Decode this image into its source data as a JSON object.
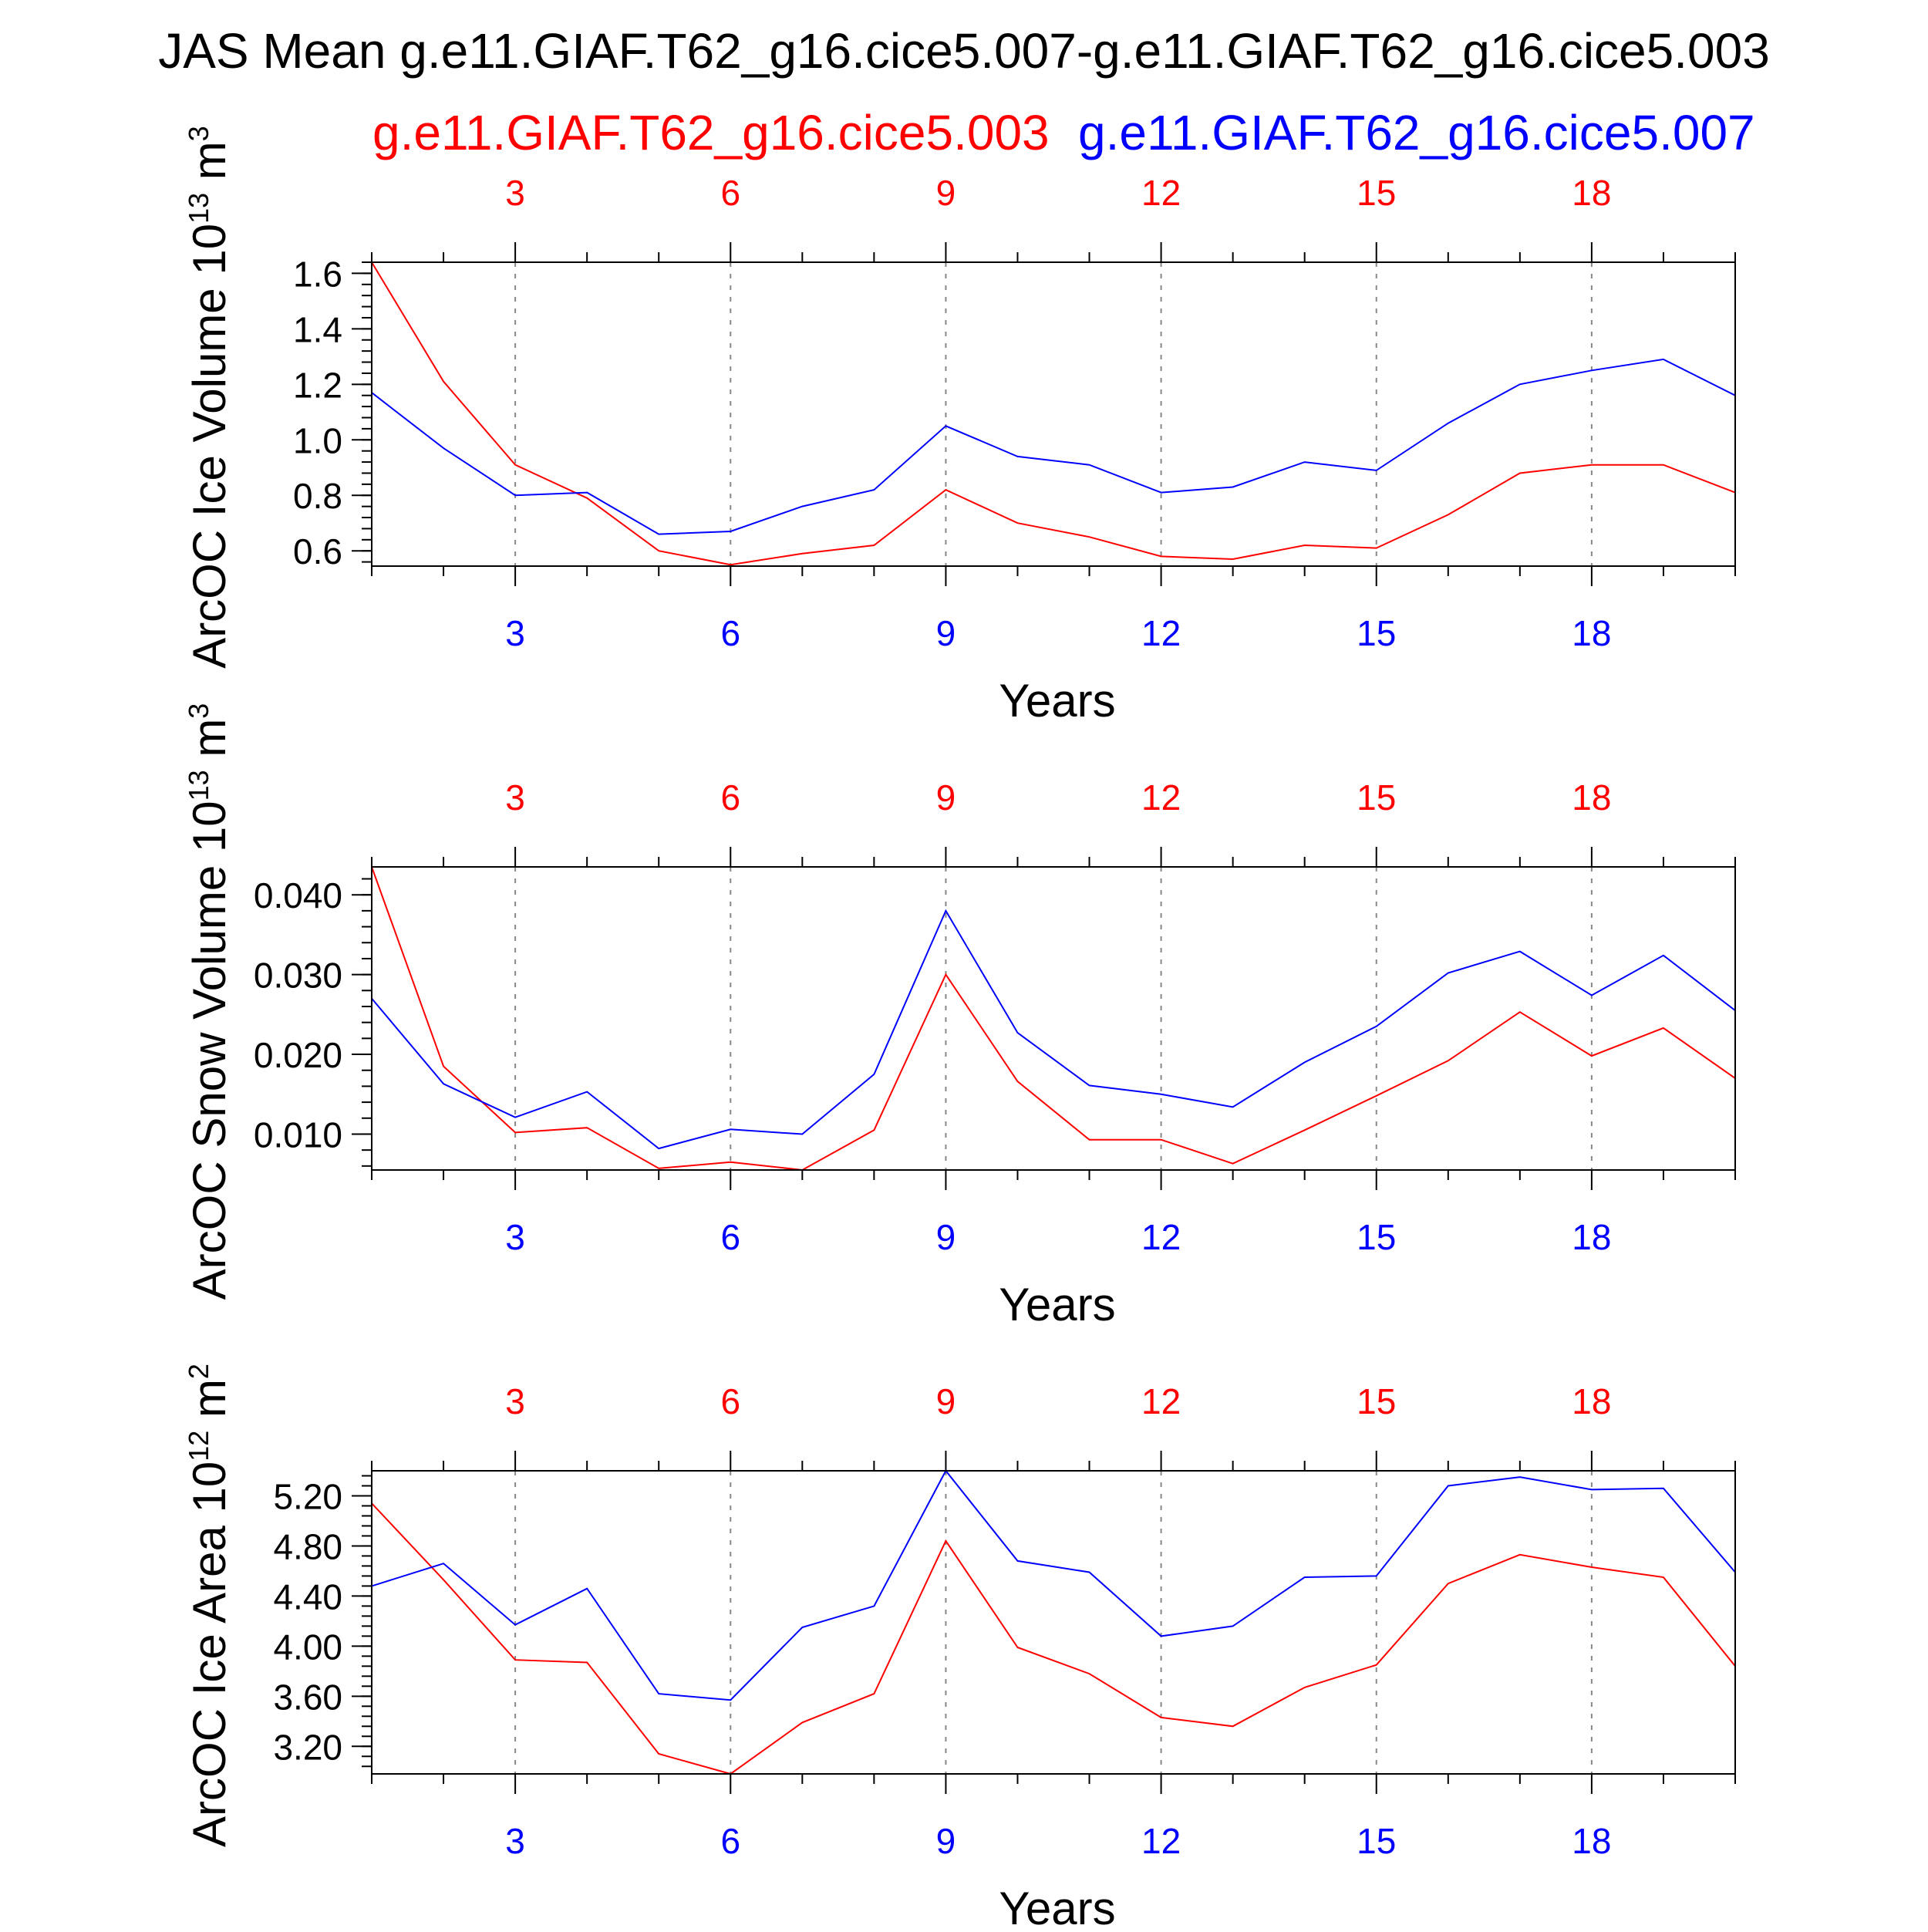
{
  "title": "JAS Mean g.e11.GIAF.T62_g16.cice5.007-g.e11.GIAF.T62_g16.cice5.003",
  "legend": {
    "series_a": "g.e11.GIAF.T62_g16.cice5.003",
    "series_b": "g.e11.GIAF.T62_g16.cice5.007"
  },
  "colors": {
    "series_a": "#ff0000",
    "series_b": "#0000ff",
    "axis": "#000000",
    "grid": "#888888"
  },
  "chart_data": [
    {
      "type": "line",
      "ylabel": "ArcOC Ice Volume 10",
      "ylabel_exp": "13",
      "ylabel_unit": " m",
      "ylabel_unit_exp": "3",
      "xlabel": "Years",
      "xlim": [
        1,
        20
      ],
      "ylim": [
        0.545,
        1.64
      ],
      "xticks": [
        3,
        6,
        9,
        12,
        15,
        18
      ],
      "yticks": [
        0.6,
        0.8,
        1.0,
        1.2,
        1.4,
        1.6
      ],
      "ytick_labels": [
        "0.6",
        "0.8",
        "1.0",
        "1.2",
        "1.4",
        "1.6"
      ],
      "x": [
        1,
        2,
        3,
        4,
        5,
        6,
        7,
        8,
        9,
        10,
        11,
        12,
        13,
        14,
        15,
        16,
        17,
        18,
        19,
        20
      ],
      "series": [
        {
          "name": "g.e11.GIAF.T62_g16.cice5.003",
          "values": [
            1.64,
            1.21,
            0.91,
            0.79,
            0.6,
            0.55,
            0.59,
            0.62,
            0.82,
            0.7,
            0.65,
            0.58,
            0.57,
            0.62,
            0.61,
            0.73,
            0.88,
            0.91,
            0.91,
            0.81
          ]
        },
        {
          "name": "g.e11.GIAF.T62_g16.cice5.007",
          "values": [
            1.17,
            0.97,
            0.8,
            0.81,
            0.66,
            0.67,
            0.76,
            0.82,
            1.05,
            0.94,
            0.91,
            0.81,
            0.83,
            0.92,
            0.89,
            1.06,
            1.2,
            1.25,
            1.29,
            1.16
          ]
        }
      ]
    },
    {
      "type": "line",
      "ylabel": "ArcOC Snow Volume 10",
      "ylabel_exp": "13",
      "ylabel_unit": " m",
      "ylabel_unit_exp": "3",
      "xlabel": "Years",
      "xlim": [
        1,
        20
      ],
      "ylim": [
        0.0055,
        0.0435
      ],
      "xticks": [
        3,
        6,
        9,
        12,
        15,
        18
      ],
      "yticks": [
        0.01,
        0.02,
        0.03,
        0.04
      ],
      "ytick_labels": [
        "0.010",
        "0.020",
        "0.030",
        "0.040"
      ],
      "x": [
        1,
        2,
        3,
        4,
        5,
        6,
        7,
        8,
        9,
        10,
        11,
        12,
        13,
        14,
        15,
        16,
        17,
        18,
        19,
        20
      ],
      "series": [
        {
          "name": "g.e11.GIAF.T62_g16.cice5.003",
          "values": [
            0.0435,
            0.0185,
            0.0102,
            0.0108,
            0.0057,
            0.0065,
            0.0055,
            0.0105,
            0.03,
            0.0166,
            0.0093,
            0.0093,
            0.0063,
            0.0105,
            0.0148,
            0.0192,
            0.0253,
            0.0198,
            0.0233,
            0.017
          ]
        },
        {
          "name": "g.e11.GIAF.T62_g16.cice5.007",
          "values": [
            0.027,
            0.0163,
            0.0121,
            0.0153,
            0.0082,
            0.0106,
            0.01,
            0.0175,
            0.038,
            0.0227,
            0.0161,
            0.015,
            0.0134,
            0.019,
            0.0235,
            0.0302,
            0.0329,
            0.0274,
            0.0324,
            0.0255
          ]
        }
      ]
    },
    {
      "type": "line",
      "ylabel": "ArcOC Ice Area 10",
      "ylabel_exp": "12",
      "ylabel_unit": " m",
      "ylabel_unit_exp": "2",
      "xlabel": "Years",
      "xlim": [
        1,
        20
      ],
      "ylim": [
        2.98,
        5.4
      ],
      "xticks": [
        3,
        6,
        9,
        12,
        15,
        18
      ],
      "yticks": [
        3.2,
        3.6,
        4.0,
        4.4,
        4.8,
        5.2
      ],
      "ytick_labels": [
        "3.20",
        "3.60",
        "4.00",
        "4.40",
        "4.80",
        "5.20"
      ],
      "x": [
        1,
        2,
        3,
        4,
        5,
        6,
        7,
        8,
        9,
        10,
        11,
        12,
        13,
        14,
        15,
        16,
        17,
        18,
        19,
        20
      ],
      "series": [
        {
          "name": "g.e11.GIAF.T62_g16.cice5.003",
          "values": [
            5.14,
            4.53,
            3.89,
            3.87,
            3.14,
            2.98,
            3.39,
            3.62,
            4.84,
            3.99,
            3.78,
            3.43,
            3.36,
            3.67,
            3.85,
            4.5,
            4.73,
            4.63,
            4.55,
            3.84
          ]
        },
        {
          "name": "g.e11.GIAF.T62_g16.cice5.007",
          "values": [
            4.48,
            4.66,
            4.17,
            4.46,
            3.62,
            3.57,
            4.15,
            4.32,
            5.4,
            4.68,
            4.59,
            4.08,
            4.16,
            4.55,
            4.56,
            5.28,
            5.35,
            5.25,
            5.26,
            4.59
          ]
        }
      ]
    }
  ]
}
